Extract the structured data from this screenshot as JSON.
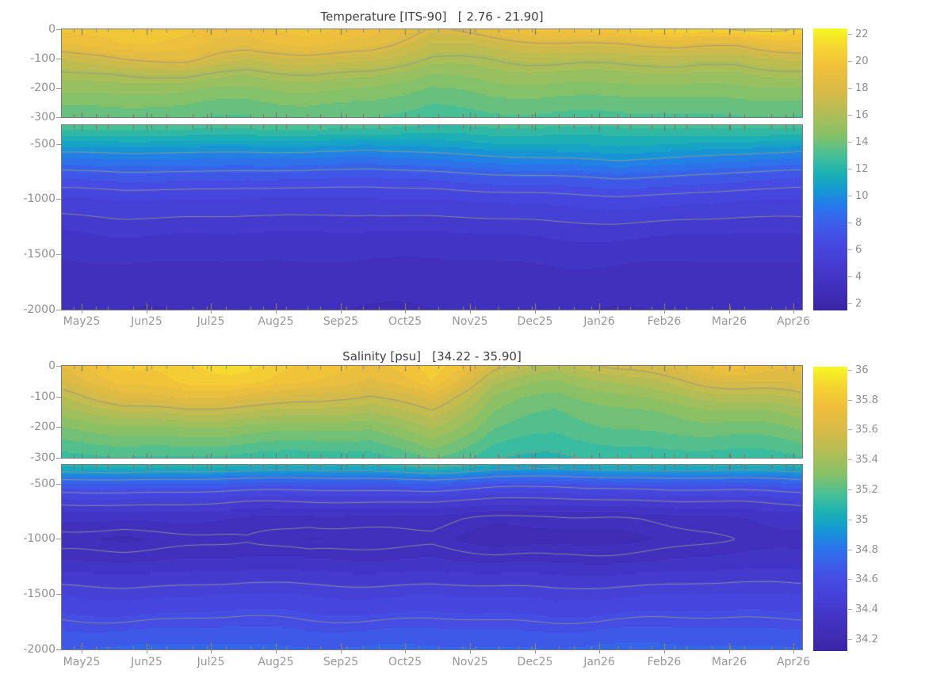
{
  "figure": {
    "background": "#ffffff"
  },
  "style": {
    "title_color": "#3f3f3f",
    "tick_label_color": "#909090",
    "axis_border_color": "#7a7a7a",
    "contour_line_color": "rgba(150,148,138,0.85)",
    "month_tick_color": "#6f6f6f",
    "profile_tick_gray": "#8a8a8a",
    "profile_tick_red": "#b15a50",
    "profile_tick_olive": "#8f8d45"
  },
  "colormap": {
    "name": "parula",
    "stops": [
      [
        0.0,
        "#3a26a3"
      ],
      [
        0.07,
        "#402eba"
      ],
      [
        0.13,
        "#4336c8"
      ],
      [
        0.19,
        "#4541d7"
      ],
      [
        0.25,
        "#454be3"
      ],
      [
        0.31,
        "#3a60ea"
      ],
      [
        0.37,
        "#2778ec"
      ],
      [
        0.43,
        "#149ad1"
      ],
      [
        0.49,
        "#1db2b2"
      ],
      [
        0.55,
        "#46bf96"
      ],
      [
        0.62,
        "#85c168"
      ],
      [
        0.7,
        "#b2bd55"
      ],
      [
        0.78,
        "#d9ba46"
      ],
      [
        0.86,
        "#f0bf3b"
      ],
      [
        0.93,
        "#f6d431"
      ],
      [
        1.0,
        "#f7f821"
      ]
    ]
  },
  "chart_data": [
    {
      "type": "heatmap",
      "id": "temperature",
      "title": "Temperature [ITS-90]   [ 2.76 - 21.90]",
      "variable": "Temperature",
      "units": "ITS-90",
      "value_range": [
        2.76,
        21.9
      ],
      "x_ticks": [
        "May25",
        "Jun25",
        "Jul25",
        "Aug25",
        "Sep25",
        "Oct25",
        "Nov25",
        "Dec25",
        "Jan26",
        "Feb26",
        "Mar26",
        "Apr26"
      ],
      "panels": [
        {
          "ylim": [
            0,
            -300
          ],
          "y_ticks": [
            {
              "v": 0,
              "label": "0"
            },
            {
              "v": -100,
              "label": "-100"
            },
            {
              "v": -200,
              "label": "-200"
            },
            {
              "v": -300,
              "label": "-300"
            }
          ]
        },
        {
          "ylim": [
            -330,
            -2000
          ],
          "y_ticks": [
            {
              "v": -500,
              "label": "-500"
            },
            {
              "v": -1000,
              "label": "-1000"
            },
            {
              "v": -1500,
              "label": "-1500"
            },
            {
              "v": -2000,
              "label": "-2000"
            }
          ]
        }
      ],
      "colorbar": {
        "min": 1.5,
        "max": 22.4,
        "ticks": [
          {
            "v": 2,
            "label": "2"
          },
          {
            "v": 4,
            "label": "4"
          },
          {
            "v": 6,
            "label": "6"
          },
          {
            "v": 8,
            "label": "8"
          },
          {
            "v": 10,
            "label": "10"
          },
          {
            "v": 12,
            "label": "12"
          },
          {
            "v": 14,
            "label": "14"
          },
          {
            "v": 16,
            "label": "16"
          },
          {
            "v": 18,
            "label": "18"
          },
          {
            "v": 20,
            "label": "20"
          },
          {
            "v": 22,
            "label": "22"
          }
        ]
      },
      "contour_line_levels": [
        5,
        6.5,
        8,
        10,
        16,
        18,
        21
      ],
      "level_step": 0.7,
      "texture": {
        "amp0": 0.35,
        "decay": 180,
        "base": 0.08,
        "ph": 0
      },
      "grid": {
        "columns": 13,
        "depths": [
          0,
          50,
          100,
          150,
          200,
          250,
          300,
          400,
          500,
          650,
          800,
          1000,
          1300,
          1600,
          2000
        ],
        "values": [
          [
            19.8,
            20.2,
            20.0,
            19.6,
            19.6,
            19.2,
            17.8,
            19.2,
            19.8,
            20.6,
            21.2,
            21.1,
            20.4
          ],
          [
            19.0,
            19.8,
            19.4,
            18.9,
            18.9,
            18.5,
            16.9,
            17.3,
            17.7,
            18.1,
            18.7,
            18.1,
            19.2
          ],
          [
            16.9,
            18.1,
            18.6,
            17.1,
            17.3,
            17.1,
            15.9,
            16.1,
            16.3,
            16.5,
            16.7,
            16.3,
            16.9
          ],
          [
            15.8,
            16.2,
            16.5,
            15.7,
            15.9,
            15.7,
            14.9,
            15.3,
            15.3,
            15.5,
            15.7,
            15.3,
            15.7
          ],
          [
            15.0,
            15.2,
            15.1,
            14.7,
            14.9,
            14.7,
            14.1,
            14.5,
            14.5,
            14.7,
            14.7,
            14.5,
            14.7
          ],
          [
            14.2,
            14.4,
            14.3,
            13.9,
            14.1,
            14.0,
            13.5,
            13.8,
            13.8,
            13.9,
            13.9,
            13.8,
            13.9
          ],
          [
            13.5,
            13.7,
            13.6,
            13.3,
            13.5,
            13.4,
            13.0,
            13.2,
            13.2,
            13.3,
            13.3,
            13.2,
            13.3
          ],
          [
            12.4,
            12.5,
            12.4,
            12.2,
            12.3,
            12.2,
            12.0,
            12.2,
            12.2,
            12.3,
            12.3,
            12.2,
            12.2
          ],
          [
            10.9,
            11.1,
            11.0,
            10.8,
            10.9,
            10.7,
            10.9,
            11.2,
            11.4,
            11.6,
            11.3,
            11.0,
            10.9
          ],
          [
            9.0,
            9.2,
            9.1,
            8.9,
            9.0,
            8.8,
            9.1,
            9.5,
            9.8,
            10.0,
            9.6,
            9.2,
            9.0
          ],
          [
            7.3,
            7.5,
            7.4,
            7.2,
            7.3,
            7.1,
            7.3,
            7.7,
            7.9,
            8.1,
            7.8,
            7.4,
            7.2
          ],
          [
            5.7,
            5.8,
            5.7,
            5.6,
            5.7,
            5.6,
            5.7,
            5.9,
            6.1,
            6.2,
            6.0,
            5.8,
            5.7
          ],
          [
            4.3,
            4.4,
            4.3,
            4.3,
            4.3,
            4.2,
            4.3,
            4.4,
            4.5,
            4.5,
            4.4,
            4.3,
            4.3
          ],
          [
            3.5,
            3.5,
            3.5,
            3.5,
            3.5,
            3.4,
            3.5,
            3.5,
            3.6,
            3.6,
            3.5,
            3.5,
            3.5
          ],
          [
            2.9,
            2.9,
            2.9,
            2.9,
            2.9,
            2.9,
            2.9,
            2.9,
            2.9,
            2.9,
            2.9,
            2.9,
            2.9
          ]
        ]
      }
    },
    {
      "type": "heatmap",
      "id": "salinity",
      "title": "Salinity [psu]   [34.22 - 35.90]",
      "variable": "Salinity",
      "units": "psu",
      "value_range": [
        34.22,
        35.9
      ],
      "x_ticks": [
        "May25",
        "Jun25",
        "Jul25",
        "Aug25",
        "Sep25",
        "Oct25",
        "Nov25",
        "Dec25",
        "Jan26",
        "Feb26",
        "Mar26",
        "Apr26"
      ],
      "panels": [
        {
          "ylim": [
            0,
            -300
          ],
          "y_ticks": [
            {
              "v": 0,
              "label": "0"
            },
            {
              "v": -100,
              "label": "-100"
            },
            {
              "v": -200,
              "label": "-200"
            },
            {
              "v": -300,
              "label": "-300"
            }
          ]
        },
        {
          "ylim": [
            -330,
            -2000
          ],
          "y_ticks": [
            {
              "v": -500,
              "label": "-500"
            },
            {
              "v": -1000,
              "label": "-1000"
            },
            {
              "v": -1500,
              "label": "-1500"
            },
            {
              "v": -2000,
              "label": "-2000"
            }
          ]
        }
      ],
      "colorbar": {
        "min": 34.12,
        "max": 36.02,
        "ticks": [
          {
            "v": 34.2,
            "label": "34.2"
          },
          {
            "v": 34.4,
            "label": "34.4"
          },
          {
            "v": 34.6,
            "label": "34.6"
          },
          {
            "v": 34.8,
            "label": "34.8"
          },
          {
            "v": 35,
            "label": "35"
          },
          {
            "v": 35.2,
            "label": "35.2"
          },
          {
            "v": 35.4,
            "label": "35.4"
          },
          {
            "v": 35.6,
            "label": "35.6"
          },
          {
            "v": 35.8,
            "label": "35.8"
          },
          {
            "v": 36,
            "label": "36"
          }
        ]
      },
      "contour_line_levels": [
        34.28,
        34.45,
        34.6,
        34.8,
        34.95,
        35.1,
        35.55
      ],
      "level_step": 0.065,
      "texture": {
        "amp0": 0.04,
        "decay": 150,
        "base": 0.012,
        "ph": 2.4
      },
      "grid": {
        "columns": 13,
        "depths": [
          0,
          50,
          100,
          150,
          200,
          300,
          400,
          500,
          650,
          800,
          1000,
          1200,
          1500,
          2000
        ],
        "values": [
          [
            35.7,
            35.85,
            35.9,
            35.85,
            35.8,
            35.72,
            35.85,
            35.55,
            35.5,
            35.6,
            35.66,
            35.75,
            35.72
          ],
          [
            35.62,
            35.8,
            35.86,
            35.8,
            35.76,
            35.66,
            35.8,
            35.42,
            35.38,
            35.45,
            35.52,
            35.62,
            35.66
          ],
          [
            35.5,
            35.66,
            35.72,
            35.62,
            35.6,
            35.54,
            35.64,
            35.33,
            35.3,
            35.35,
            35.4,
            35.46,
            35.52
          ],
          [
            35.4,
            35.5,
            35.52,
            35.46,
            35.46,
            35.42,
            35.52,
            35.28,
            35.24,
            35.28,
            35.3,
            35.34,
            35.4
          ],
          [
            35.3,
            35.36,
            35.36,
            35.32,
            35.32,
            35.3,
            35.42,
            35.23,
            35.2,
            35.24,
            35.25,
            35.26,
            35.31
          ],
          [
            35.14,
            35.17,
            35.15,
            35.12,
            35.12,
            35.12,
            35.22,
            35.11,
            35.09,
            35.12,
            35.12,
            35.12,
            35.15
          ],
          [
            34.94,
            34.95,
            34.92,
            34.9,
            34.9,
            34.9,
            34.95,
            34.89,
            34.87,
            34.9,
            34.9,
            34.9,
            34.92
          ],
          [
            34.72,
            34.72,
            34.7,
            34.68,
            34.68,
            34.68,
            34.7,
            34.65,
            34.64,
            34.66,
            34.68,
            34.68,
            34.7
          ],
          [
            34.5,
            34.5,
            34.48,
            34.46,
            34.46,
            34.46,
            34.46,
            34.43,
            34.42,
            34.44,
            34.46,
            34.46,
            34.48
          ],
          [
            34.34,
            34.33,
            34.33,
            34.32,
            34.3,
            34.3,
            34.3,
            34.28,
            34.27,
            34.28,
            34.3,
            34.32,
            34.33
          ],
          [
            34.25,
            34.24,
            34.26,
            34.28,
            34.23,
            34.25,
            34.27,
            34.23,
            34.22,
            34.24,
            34.26,
            34.28,
            34.28
          ],
          [
            34.31,
            34.31,
            34.32,
            34.33,
            34.31,
            34.32,
            34.33,
            34.31,
            34.3,
            34.31,
            34.32,
            34.33,
            34.33
          ],
          [
            34.5,
            34.49,
            34.5,
            34.51,
            34.5,
            34.5,
            34.51,
            34.5,
            34.49,
            34.5,
            34.5,
            34.51,
            34.51
          ],
          [
            34.72,
            34.72,
            34.72,
            34.72,
            34.72,
            34.72,
            34.72,
            34.72,
            34.72,
            34.72,
            34.72,
            34.72,
            34.72
          ]
        ]
      }
    }
  ]
}
